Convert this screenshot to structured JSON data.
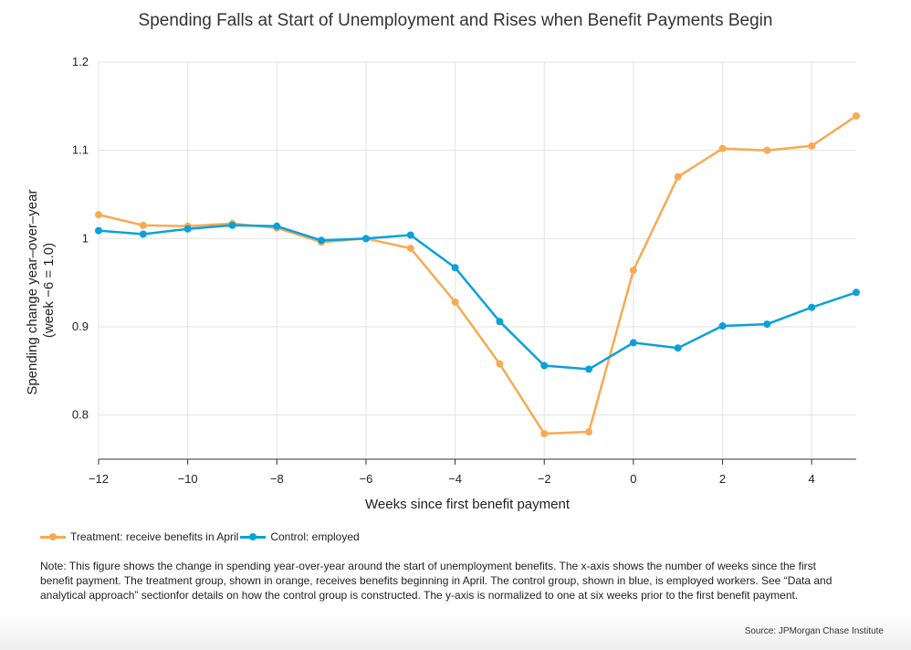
{
  "title": "Spending Falls at Start of Unemployment and Rises when Benefit Payments Begin",
  "chart_data": {
    "type": "line",
    "title": "Spending Falls at Start of Unemployment and Rises when Benefit Payments Begin",
    "xlabel": "Weeks since first benefit payment",
    "ylabel_line1": "Spending change year–over–year",
    "ylabel_line2": "(week −6 = 1.0)",
    "xlim": [
      -12,
      5
    ],
    "ylim": [
      0.75,
      1.2
    ],
    "x_ticks": [
      -12,
      -10,
      -8,
      -6,
      -4,
      -2,
      0,
      2,
      4
    ],
    "x_tick_labels": [
      "−12",
      "−10",
      "−8",
      "−6",
      "−4",
      "−2",
      "0",
      "2",
      "4"
    ],
    "y_ticks": [
      0.8,
      0.9,
      1.0,
      1.1,
      1.2
    ],
    "y_tick_labels": [
      "0.8",
      "0.9",
      "1",
      "1.1",
      "1.2"
    ],
    "x": [
      -12,
      -11,
      -10,
      -9,
      -8,
      -7,
      -6,
      -5,
      -4,
      -3,
      -2,
      -1,
      0,
      1,
      2,
      3,
      4,
      5
    ],
    "series": [
      {
        "name": "Treatment: receive benefits in April",
        "color": "#f8aa52",
        "values": [
          1.027,
          1.015,
          1.014,
          1.017,
          1.012,
          0.996,
          1.0,
          0.989,
          0.928,
          0.858,
          0.779,
          0.781,
          0.964,
          1.07,
          1.102,
          1.1,
          1.105,
          1.139
        ]
      },
      {
        "name": "Control: employed",
        "color": "#0aa0dc",
        "values": [
          1.009,
          1.005,
          1.011,
          1.015,
          1.014,
          0.998,
          1.0,
          1.004,
          0.967,
          0.906,
          0.856,
          0.852,
          0.882,
          0.876,
          0.901,
          0.903,
          0.922,
          0.939
        ]
      }
    ],
    "grid": true,
    "legend_position": "bottom-left"
  },
  "legend": {
    "items": [
      {
        "label": "Treatment: receive benefits in April",
        "color": "#f8aa52"
      },
      {
        "label": "Control: employed",
        "color": "#0aa0dc"
      }
    ]
  },
  "note": "Note: This figure shows the change in spending year-over-year around the start of unemployment benefits. The x-axis shows the number of weeks since the first benefit payment. The treatment group, shown in orange, receives benefits beginning in April. The control group, shown in blue, is employed workers. See “Data and analytical approach” sectionfor details on how the control group is constructed. The y-axis is normalized to one at six weeks prior to the first benefit payment.",
  "source": "Source: JPMorgan Chase Institute"
}
